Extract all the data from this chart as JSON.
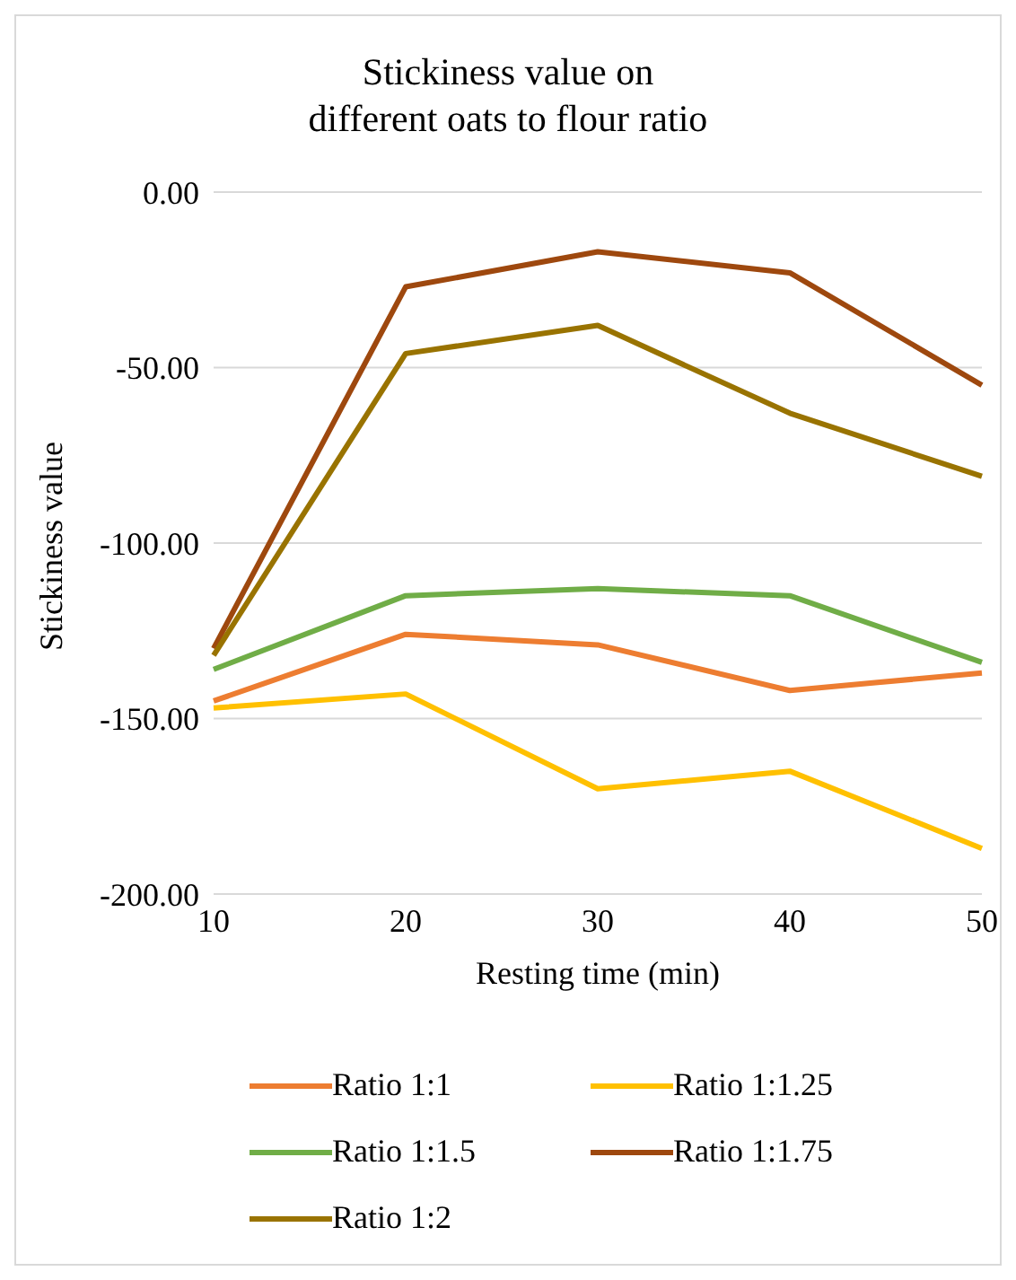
{
  "chart_data": {
    "type": "line",
    "title": "Stickiness value on\ndifferent oats to flour ratio",
    "xlabel": "Resting time (min)",
    "ylabel": "Stickiness value",
    "categories": [
      "10",
      "20",
      "30",
      "40",
      "50"
    ],
    "series": [
      {
        "name": "Ratio 1:1",
        "color": "#ed7d31",
        "values": [
          -145,
          -126,
          -129,
          -142,
          -137
        ]
      },
      {
        "name": "Ratio 1:1.25",
        "color": "#ffc000",
        "values": [
          -147,
          -143,
          -170,
          -165,
          -187
        ]
      },
      {
        "name": "Ratio 1:1.5",
        "color": "#70ad47",
        "values": [
          -136,
          -115,
          -113,
          -115,
          -134
        ]
      },
      {
        "name": "Ratio 1:1.75",
        "color": "#9e480e",
        "values": [
          -130,
          -27,
          -17,
          -23,
          -55
        ]
      },
      {
        "name": "Ratio 1:2",
        "color": "#997300",
        "values": [
          -132,
          -46,
          -38,
          -63,
          -81
        ]
      }
    ],
    "ylim": [
      -200,
      0
    ],
    "yticks": [
      {
        "value": -200,
        "label": "-200.00"
      },
      {
        "value": -150,
        "label": "-150.00"
      },
      {
        "value": -100,
        "label": "-100.00"
      },
      {
        "value": -50,
        "label": "-50.00"
      },
      {
        "value": 0,
        "label": "0.00"
      }
    ],
    "grid": "y",
    "legend": "bottom",
    "marker": "none",
    "line_style": "solid"
  }
}
